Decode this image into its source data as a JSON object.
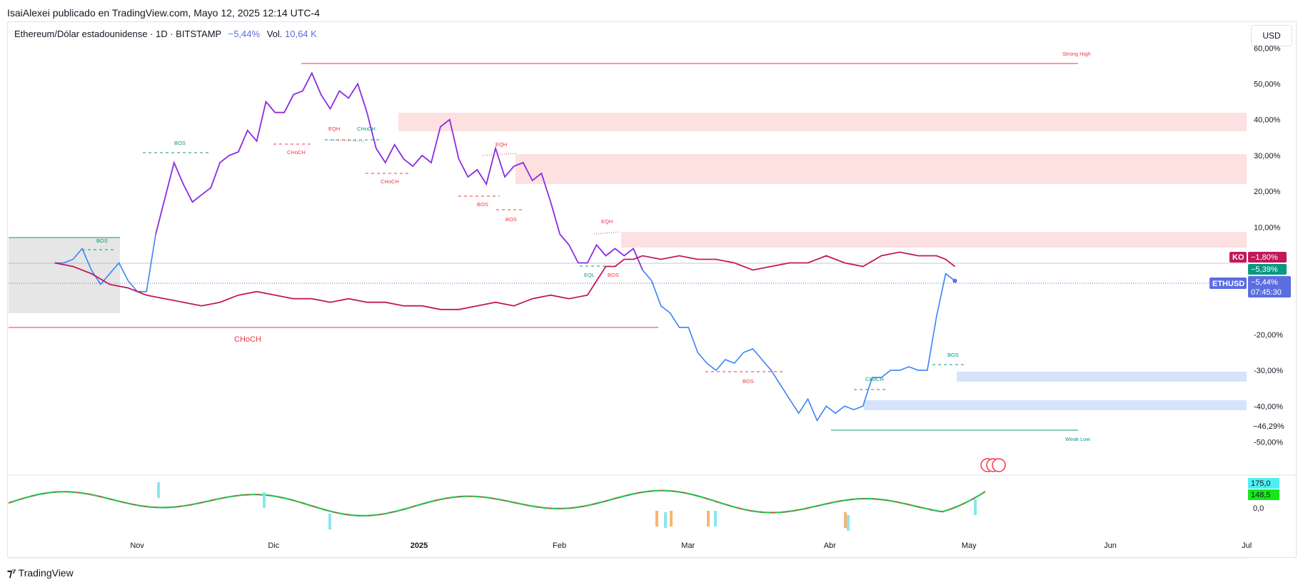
{
  "header": {
    "published": "IsaiAlexei publicado en TradingView.com, Mayo 12, 2025 12:14 UTC-4",
    "symbol": "Ethereum/Dólar estadounidense · 1D · BITSTAMP",
    "change": "−5,44%",
    "vol_label": "Vol.",
    "vol_value": "10,64 K",
    "currency_button": "USD"
  },
  "footer": {
    "brand": "TradingView",
    "logo_icon": "tradingview-logo-icon"
  },
  "chart_data": {
    "type": "line",
    "percent_mode": true,
    "ylim": [
      -55,
      63
    ],
    "x_labels": [
      {
        "label": "Nov",
        "day": 10
      },
      {
        "label": "Dic",
        "day": 40
      },
      {
        "label": "2025",
        "day": 71
      },
      {
        "label": "Feb",
        "day": 102
      },
      {
        "label": "Mar",
        "day": 130
      },
      {
        "label": "Abr",
        "day": 161
      },
      {
        "label": "May",
        "day": 191
      },
      {
        "label": "Jun",
        "day": 222
      },
      {
        "label": "Jul",
        "day": 252
      }
    ],
    "y_ticks": [
      "60,00%",
      "50,00%",
      "40,00%",
      "30,00%",
      "20,00%",
      "10,00%",
      "-20,00%",
      "-30,00%",
      "-40,00%",
      "-50,00%"
    ],
    "y_tick_values": [
      60,
      50,
      40,
      30,
      20,
      10,
      -20,
      -30,
      -40,
      -50
    ],
    "colors": {
      "eth_up": "#8a2be2",
      "eth_down": "#3b82f6",
      "ko": "#c2185b",
      "zone_red": "#fde0e0",
      "zone_blue": "#d6e4fb",
      "bull": "#089981",
      "bear": "#f23645"
    },
    "series": [
      {
        "name": "ETHUSD",
        "points": [
          [
            -8,
            0
          ],
          [
            -6,
            0
          ],
          [
            -4,
            1
          ],
          [
            -2,
            4
          ],
          [
            0,
            -2
          ],
          [
            2,
            -6
          ],
          [
            4,
            -3
          ],
          [
            6,
            0
          ],
          [
            8,
            -5
          ],
          [
            10,
            -8
          ],
          [
            12,
            -8
          ],
          [
            14,
            8
          ],
          [
            16,
            18
          ],
          [
            18,
            28
          ],
          [
            20,
            22
          ],
          [
            22,
            17
          ],
          [
            24,
            19
          ],
          [
            26,
            21
          ],
          [
            28,
            28
          ],
          [
            30,
            30
          ],
          [
            32,
            31
          ],
          [
            34,
            37
          ],
          [
            36,
            34
          ],
          [
            38,
            45
          ],
          [
            40,
            42
          ],
          [
            42,
            42
          ],
          [
            44,
            47
          ],
          [
            46,
            48
          ],
          [
            48,
            53
          ],
          [
            50,
            47
          ],
          [
            52,
            43
          ],
          [
            54,
            48
          ],
          [
            56,
            46
          ],
          [
            58,
            50
          ],
          [
            60,
            42
          ],
          [
            62,
            32
          ],
          [
            64,
            28
          ],
          [
            66,
            33
          ],
          [
            68,
            29
          ],
          [
            70,
            27
          ],
          [
            72,
            30
          ],
          [
            74,
            28
          ],
          [
            76,
            38
          ],
          [
            78,
            40
          ],
          [
            80,
            29
          ],
          [
            82,
            24
          ],
          [
            84,
            26
          ],
          [
            86,
            22
          ],
          [
            88,
            32
          ],
          [
            90,
            24
          ],
          [
            92,
            27
          ],
          [
            94,
            28
          ],
          [
            96,
            23
          ],
          [
            98,
            25
          ],
          [
            100,
            17
          ],
          [
            102,
            8
          ],
          [
            104,
            5
          ],
          [
            106,
            0
          ],
          [
            108,
            0
          ],
          [
            110,
            5
          ],
          [
            112,
            2
          ],
          [
            114,
            4
          ],
          [
            116,
            2
          ],
          [
            118,
            4
          ],
          [
            120,
            -2
          ],
          [
            122,
            -5
          ],
          [
            124,
            -12
          ],
          [
            126,
            -14
          ],
          [
            128,
            -18
          ],
          [
            130,
            -18
          ],
          [
            132,
            -25
          ],
          [
            134,
            -28
          ],
          [
            136,
            -30
          ],
          [
            138,
            -27
          ],
          [
            140,
            -28
          ],
          [
            142,
            -25
          ],
          [
            144,
            -24
          ],
          [
            146,
            -27
          ],
          [
            148,
            -30
          ],
          [
            150,
            -34
          ],
          [
            152,
            -38
          ],
          [
            154,
            -42
          ],
          [
            156,
            -38
          ],
          [
            158,
            -44
          ],
          [
            160,
            -40
          ],
          [
            162,
            -42
          ],
          [
            164,
            -40
          ],
          [
            166,
            -41
          ],
          [
            168,
            -40
          ],
          [
            170,
            -32
          ],
          [
            172,
            -32
          ],
          [
            174,
            -30
          ],
          [
            176,
            -30
          ],
          [
            178,
            -29
          ],
          [
            180,
            -30
          ],
          [
            182,
            -30
          ],
          [
            184,
            -15
          ],
          [
            186,
            -3
          ],
          [
            188,
            -5
          ]
        ],
        "last_label": "ETHUSD",
        "last_value": "−5,44%",
        "countdown": "07:45:30",
        "prev_label": "−5,39%",
        "low_label": "−46,29%"
      },
      {
        "name": "KO",
        "points": [
          [
            -8,
            0
          ],
          [
            -4,
            -1
          ],
          [
            0,
            -3
          ],
          [
            4,
            -6
          ],
          [
            8,
            -7
          ],
          [
            12,
            -9
          ],
          [
            16,
            -10
          ],
          [
            20,
            -11
          ],
          [
            24,
            -12
          ],
          [
            28,
            -11
          ],
          [
            32,
            -9
          ],
          [
            36,
            -8
          ],
          [
            40,
            -9
          ],
          [
            44,
            -10
          ],
          [
            48,
            -10
          ],
          [
            52,
            -11
          ],
          [
            56,
            -10
          ],
          [
            60,
            -11
          ],
          [
            64,
            -11
          ],
          [
            68,
            -12
          ],
          [
            72,
            -12
          ],
          [
            76,
            -13
          ],
          [
            80,
            -13
          ],
          [
            84,
            -12
          ],
          [
            88,
            -11
          ],
          [
            92,
            -12
          ],
          [
            96,
            -10
          ],
          [
            100,
            -9
          ],
          [
            104,
            -10
          ],
          [
            108,
            -9
          ],
          [
            110,
            -5
          ],
          [
            112,
            -1
          ],
          [
            114,
            -1
          ],
          [
            116,
            1
          ],
          [
            118,
            1
          ],
          [
            120,
            2
          ],
          [
            124,
            1
          ],
          [
            128,
            2
          ],
          [
            132,
            1
          ],
          [
            136,
            1
          ],
          [
            140,
            0
          ],
          [
            144,
            -2
          ],
          [
            148,
            -1
          ],
          [
            152,
            0
          ],
          [
            156,
            0
          ],
          [
            160,
            2
          ],
          [
            164,
            0
          ],
          [
            168,
            -1
          ],
          [
            172,
            2
          ],
          [
            176,
            3
          ],
          [
            180,
            2
          ],
          [
            184,
            2
          ],
          [
            186,
            1
          ],
          [
            188,
            -1
          ]
        ],
        "last_label": "KO",
        "last_value": "−1,80%"
      }
    ],
    "annotations": [
      {
        "text": "Strong High"
      },
      {
        "text": "Weak Low"
      },
      {
        "text": "CHoCH"
      },
      {
        "text": "BOS"
      },
      {
        "text": "EQH"
      },
      {
        "text": "EQL"
      }
    ],
    "oscillator": {
      "upper_value": "175,0",
      "lower_value": "148,5",
      "zero_label": "0,0"
    }
  }
}
